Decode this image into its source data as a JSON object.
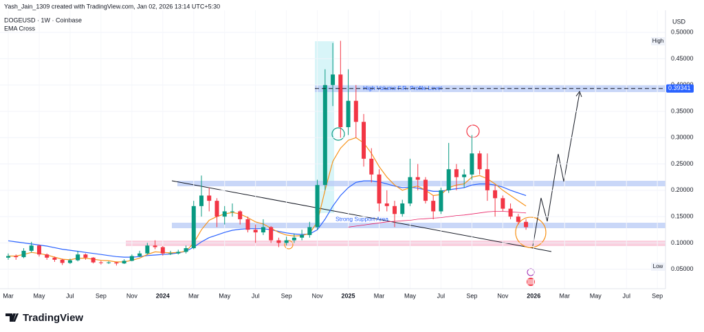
{
  "chart_data": {
    "type": "candlestick",
    "credit": "Yash_Jain_1309 created with TradingView.com, Jan 02, 2026 13:14 UTC+5:30",
    "title": "DOGEUSD · 1W · Coinbase",
    "indicator_label": "EMA Cross",
    "currency": "USD",
    "brand": "TradingView",
    "up_color": "#089981",
    "down_color": "#f23645",
    "categories": [
      "Mar",
      null,
      null,
      null,
      "May",
      null,
      null,
      null,
      "Jul",
      null,
      null,
      null,
      "Sep",
      null,
      null,
      null,
      "Nov",
      null,
      null,
      null,
      "2024",
      null,
      null,
      null,
      "Mar",
      null,
      null,
      null,
      "May",
      null,
      null,
      null,
      "Jul",
      null,
      null,
      null,
      "Sep",
      null,
      null,
      null,
      "Nov",
      null,
      null,
      null,
      "2025",
      null,
      null,
      null,
      "Mar",
      null,
      null,
      null,
      "May",
      null,
      null,
      null,
      "Jul",
      null,
      null,
      null,
      "Sep",
      null,
      null,
      null,
      "Nov",
      null,
      null,
      null,
      "2026",
      null,
      null,
      null,
      "Mar",
      null,
      null,
      null,
      "May",
      null,
      null,
      null,
      "Jul",
      null,
      null,
      null,
      "Sep"
    ],
    "open": [
      0.072,
      0.075,
      0.073,
      0.085,
      0.095,
      0.078,
      0.072,
      0.068,
      0.062,
      0.067,
      0.078,
      0.072,
      0.063,
      0.062,
      0.063,
      0.061,
      0.066,
      0.075,
      0.08,
      0.095,
      0.092,
      0.08,
      0.08,
      0.083,
      0.09,
      0.17,
      0.19,
      0.18,
      0.15,
      0.16,
      0.16,
      0.145,
      0.125,
      0.12,
      0.13,
      0.105,
      0.1,
      0.105,
      0.11,
      0.115,
      0.13,
      0.21,
      0.4,
      0.42,
      0.32,
      0.37,
      0.33,
      0.26,
      0.23,
      0.175,
      0.17,
      0.155,
      0.175,
      0.225,
      0.22,
      0.18,
      0.16,
      0.2,
      0.24,
      0.225,
      0.23,
      0.27,
      0.24,
      0.2,
      0.185,
      0.165,
      0.15,
      0.14,
      null,
      null,
      null,
      null,
      null,
      null,
      null,
      null,
      null,
      null,
      null,
      null,
      null,
      null,
      null,
      null,
      null
    ],
    "high": [
      0.08,
      0.078,
      0.09,
      0.102,
      0.097,
      0.08,
      0.074,
      0.07,
      0.07,
      0.085,
      0.08,
      0.073,
      0.066,
      0.065,
      0.064,
      0.069,
      0.078,
      0.085,
      0.1,
      0.105,
      0.094,
      0.085,
      0.087,
      0.095,
      0.18,
      0.228,
      0.205,
      0.185,
      0.17,
      0.175,
      0.162,
      0.15,
      0.135,
      0.145,
      0.132,
      0.11,
      0.112,
      0.118,
      0.125,
      0.14,
      0.22,
      0.43,
      0.48,
      0.484,
      0.43,
      0.4,
      0.345,
      0.28,
      0.24,
      0.2,
      0.18,
      0.182,
      0.26,
      0.25,
      0.225,
      0.19,
      0.205,
      0.29,
      0.25,
      0.24,
      0.305,
      0.275,
      0.27,
      0.21,
      0.19,
      0.175,
      0.155,
      0.145,
      null,
      null,
      null,
      null,
      null,
      null,
      null,
      null,
      null,
      null,
      null,
      null,
      null,
      null,
      null,
      null,
      null
    ],
    "low": [
      0.068,
      0.068,
      0.071,
      0.082,
      0.074,
      0.068,
      0.064,
      0.058,
      0.06,
      0.065,
      0.068,
      0.061,
      0.059,
      0.06,
      0.057,
      0.06,
      0.065,
      0.073,
      0.078,
      0.088,
      0.076,
      0.077,
      0.078,
      0.08,
      0.088,
      0.15,
      0.16,
      0.13,
      0.135,
      0.15,
      0.135,
      0.12,
      0.1,
      0.115,
      0.1,
      0.092,
      0.095,
      0.1,
      0.105,
      0.11,
      0.125,
      0.2,
      0.36,
      0.3,
      0.305,
      0.3,
      0.245,
      0.215,
      0.16,
      0.16,
      0.13,
      0.15,
      0.17,
      0.2,
      0.175,
      0.145,
      0.155,
      0.195,
      0.2,
      0.205,
      0.22,
      0.23,
      0.18,
      0.15,
      0.16,
      0.145,
      0.135,
      0.125,
      null,
      null,
      null,
      null,
      null,
      null,
      null,
      null,
      null,
      null,
      null,
      null,
      null,
      null,
      null,
      null,
      null
    ],
    "close": [
      0.075,
      0.073,
      0.085,
      0.095,
      0.078,
      0.072,
      0.068,
      0.062,
      0.067,
      0.078,
      0.072,
      0.063,
      0.062,
      0.063,
      0.061,
      0.066,
      0.075,
      0.08,
      0.095,
      0.092,
      0.08,
      0.08,
      0.083,
      0.09,
      0.17,
      0.19,
      0.18,
      0.15,
      0.16,
      0.16,
      0.145,
      0.125,
      0.12,
      0.13,
      0.105,
      0.1,
      0.105,
      0.11,
      0.115,
      0.13,
      0.21,
      0.4,
      0.42,
      0.32,
      0.37,
      0.33,
      0.26,
      0.23,
      0.175,
      0.17,
      0.155,
      0.175,
      0.225,
      0.22,
      0.18,
      0.16,
      0.2,
      0.24,
      0.225,
      0.23,
      0.27,
      0.24,
      0.2,
      0.185,
      0.165,
      0.15,
      0.14,
      0.13,
      null,
      null,
      null,
      null,
      null,
      null,
      null,
      null,
      null,
      null,
      null,
      null,
      null,
      null,
      null,
      null,
      null
    ],
    "indicators": [
      {
        "color": "#2962ff",
        "values": [
          0.104,
          0.102,
          0.1,
          0.098,
          0.096,
          0.094,
          0.091,
          0.088,
          0.086,
          0.084,
          0.082,
          0.08,
          0.078,
          0.076,
          0.074,
          0.073,
          0.073,
          0.074,
          0.076,
          0.077,
          0.078,
          0.079,
          0.081,
          0.084,
          0.092,
          0.102,
          0.11,
          0.115,
          0.12,
          0.124,
          0.126,
          0.127,
          0.127,
          0.127,
          0.125,
          0.122,
          0.119,
          0.117,
          0.116,
          0.117,
          0.125,
          0.145,
          0.17,
          0.19,
          0.205,
          0.215,
          0.218,
          0.218,
          0.216,
          0.212,
          0.208,
          0.205,
          0.206,
          0.204,
          0.201,
          0.198,
          0.198,
          0.201,
          0.203,
          0.205,
          0.21,
          0.212,
          0.212,
          0.21,
          0.206,
          0.2,
          0.195,
          0.19,
          null,
          null,
          null,
          null,
          null,
          null,
          null,
          null,
          null,
          null,
          null,
          null,
          null,
          null,
          null,
          null,
          null
        ]
      },
      {
        "color": "#f7931a",
        "values": [
          0.075,
          0.075,
          0.078,
          0.082,
          0.08,
          0.077,
          0.073,
          0.069,
          0.068,
          0.071,
          0.071,
          0.069,
          0.067,
          0.066,
          0.064,
          0.064,
          0.067,
          0.071,
          0.078,
          0.083,
          0.082,
          0.081,
          0.082,
          0.084,
          0.1,
          0.125,
          0.143,
          0.15,
          0.155,
          0.158,
          0.155,
          0.148,
          0.14,
          0.136,
          0.128,
          0.12,
          0.115,
          0.113,
          0.114,
          0.118,
          0.14,
          0.2,
          0.255,
          0.28,
          0.295,
          0.3,
          0.29,
          0.27,
          0.245,
          0.225,
          0.21,
          0.2,
          0.205,
          0.208,
          0.2,
          0.19,
          0.192,
          0.205,
          0.21,
          0.212,
          0.225,
          0.228,
          0.222,
          0.212,
          0.2,
          0.19,
          0.18,
          0.17,
          null,
          null,
          null,
          null,
          null,
          null,
          null,
          null,
          null,
          null,
          null,
          null,
          null,
          null,
          null,
          null,
          null
        ]
      },
      {
        "color": "#e91e63",
        "values": [
          null,
          null,
          null,
          null,
          null,
          null,
          null,
          null,
          null,
          null,
          null,
          null,
          null,
          null,
          null,
          null,
          null,
          null,
          null,
          null,
          null,
          null,
          null,
          null,
          null,
          null,
          null,
          null,
          null,
          null,
          null,
          null,
          null,
          null,
          null,
          null,
          null,
          null,
          null,
          null,
          null,
          null,
          null,
          null,
          0.13,
          0.132,
          0.134,
          0.136,
          0.138,
          0.14,
          0.141,
          0.142,
          0.143,
          0.145,
          0.146,
          0.147,
          0.148,
          0.15,
          0.152,
          0.153,
          0.155,
          0.157,
          0.159,
          0.16,
          0.16,
          0.159,
          0.158,
          0.157,
          null,
          null,
          null,
          null,
          null,
          null,
          null,
          null,
          null,
          null,
          null,
          null,
          null,
          null,
          null,
          null,
          null
        ]
      }
    ],
    "ylim": [
      0.013,
      0.542
    ],
    "yticks": [
      {
        "value": 0.05,
        "label": "0.05000"
      },
      {
        "value": 0.1,
        "label": "0.10000"
      },
      {
        "value": 0.15,
        "label": "0.15000"
      },
      {
        "value": 0.2,
        "label": "0.20000"
      },
      {
        "value": 0.25,
        "label": "0.25000"
      },
      {
        "value": 0.3,
        "label": "0.30000"
      },
      {
        "value": 0.35,
        "label": "0.35000"
      },
      {
        "value": 0.4,
        "label": "0.40000"
      },
      {
        "value": 0.45,
        "label": "0.45000"
      },
      {
        "value": 0.5,
        "label": "0.50000"
      }
    ],
    "high_label": "High",
    "low_label": "Low",
    "support_label": "Strong Support Area",
    "profile_label": "High Volume F.R. Profile Level",
    "profile_level": 0.39341
  }
}
